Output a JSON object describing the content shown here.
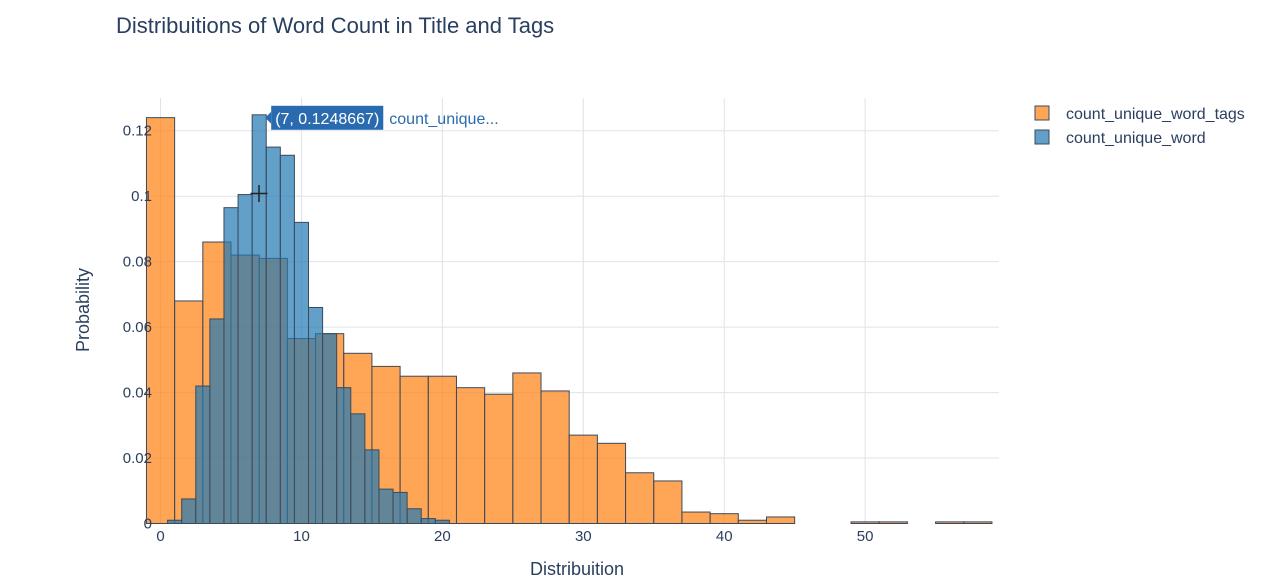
{
  "chart_data": {
    "type": "bar",
    "title": "Distribuitions of Word Count in Title and Tags",
    "xlabel": "Distribuition",
    "ylabel": "Probability",
    "xlim": [
      -0.5,
      59.5
    ],
    "ylim": [
      0,
      0.13
    ],
    "x_ticks": [
      0,
      10,
      20,
      30,
      40,
      50
    ],
    "y_ticks": [
      0,
      0.02,
      0.04,
      0.06,
      0.08,
      0.1,
      0.12
    ],
    "y_tick_labels": [
      "0",
      "0.02",
      "0.04",
      "0.06",
      "0.08",
      "0.1",
      "0.12"
    ],
    "grid": true,
    "legend_position": "top-right",
    "barmode": "overlay",
    "series": [
      {
        "name": "count_unique_word_tags",
        "color": "#ff7f0e",
        "bin_width": 2,
        "x": [
          0,
          2,
          4,
          6,
          8,
          10,
          12,
          14,
          16,
          18,
          20,
          22,
          24,
          26,
          28,
          30,
          32,
          34,
          36,
          38,
          40,
          42,
          44,
          46,
          48,
          50,
          52,
          54,
          56,
          58
        ],
        "values": [
          0.124,
          0.068,
          0.086,
          0.082,
          0.081,
          0.0565,
          0.058,
          0.052,
          0.048,
          0.045,
          0.045,
          0.0415,
          0.0395,
          0.046,
          0.0405,
          0.027,
          0.0245,
          0.0155,
          0.013,
          0.0035,
          0.003,
          0.001,
          0.002,
          0.0,
          0.0,
          0.0005,
          0.0005,
          0.0,
          0.0005,
          0.0005
        ]
      },
      {
        "name": "count_unique_word",
        "color": "#1f77b4",
        "bin_width": 1,
        "x": [
          1,
          2,
          3,
          4,
          5,
          6,
          7,
          8,
          9,
          10,
          11,
          12,
          13,
          14,
          15,
          16,
          17,
          18,
          19,
          20
        ],
        "values": [
          0.001,
          0.0075,
          0.042,
          0.0625,
          0.0965,
          0.1005,
          0.1248667,
          0.115,
          0.1125,
          0.092,
          0.066,
          0.058,
          0.0415,
          0.0335,
          0.0225,
          0.0105,
          0.0095,
          0.0045,
          0.0015,
          0.001
        ]
      }
    ],
    "hover": {
      "label": "(7, 0.1248667)",
      "series_label": "count_unique...",
      "point_x": 7,
      "point_y": 0.1248667
    }
  }
}
